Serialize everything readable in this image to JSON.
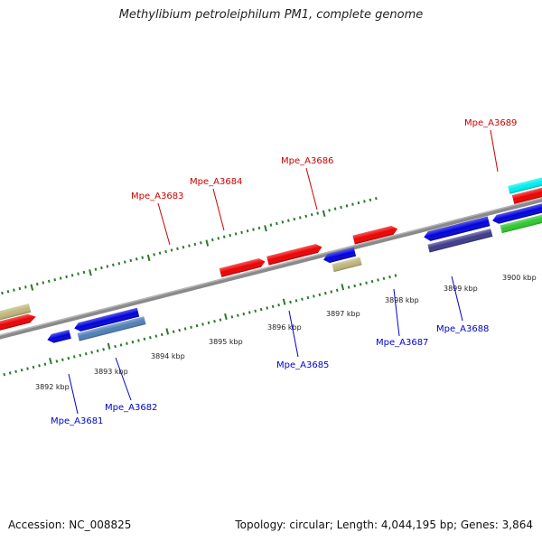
{
  "title": "Methylibium petroleiphilum PM1, complete genome",
  "footer": {
    "accession": "Accession: NC_008825",
    "summary": "Topology: circular; Length: 4,044,195 bp; Genes: 3,864"
  },
  "colors": {
    "forward_label": "#cc0000",
    "reverse_label": "#0000cc",
    "backbone": "#808080",
    "ticks": "#2a7a2a"
  },
  "ticks": [
    {
      "label": "3892 kbp",
      "kbp": 3892
    },
    {
      "label": "3893 kbp",
      "kbp": 3893
    },
    {
      "label": "3894 kbp",
      "kbp": 3894
    },
    {
      "label": "3895 kbp",
      "kbp": 3895
    },
    {
      "label": "3896 kbp",
      "kbp": 3896
    },
    {
      "label": "3897 kbp",
      "kbp": 3897
    },
    {
      "label": "3898 kbp",
      "kbp": 3898
    },
    {
      "label": "3899 kbp",
      "kbp": 3899
    },
    {
      "label": "3900 kbp",
      "kbp": 3900
    }
  ],
  "gene_labels": [
    {
      "name": "Mpe_A3681",
      "strand": "reverse"
    },
    {
      "name": "Mpe_A3682",
      "strand": "reverse"
    },
    {
      "name": "Mpe_A3683",
      "strand": "forward"
    },
    {
      "name": "Mpe_A3684",
      "strand": "forward"
    },
    {
      "name": "Mpe_A3685",
      "strand": "reverse"
    },
    {
      "name": "Mpe_A3686",
      "strand": "forward"
    },
    {
      "name": "Mpe_A3687",
      "strand": "reverse"
    },
    {
      "name": "Mpe_A3688",
      "strand": "reverse"
    },
    {
      "name": "Mpe_A3689",
      "strand": "forward"
    }
  ]
}
